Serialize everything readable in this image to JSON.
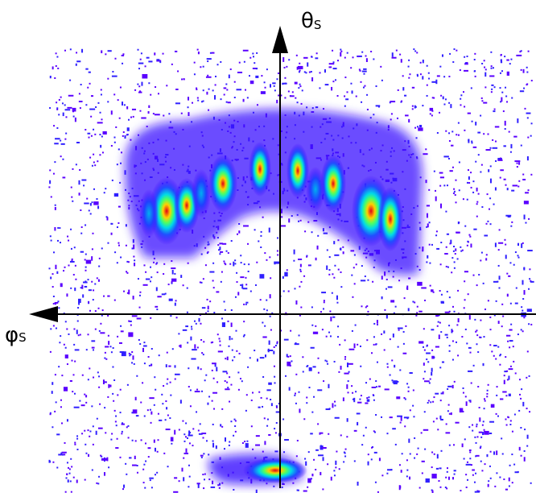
{
  "axes": {
    "vertical": {
      "symbol": "θ",
      "subscript": "S"
    },
    "horizontal": {
      "symbol": "φ",
      "subscript": "S"
    }
  }
}
